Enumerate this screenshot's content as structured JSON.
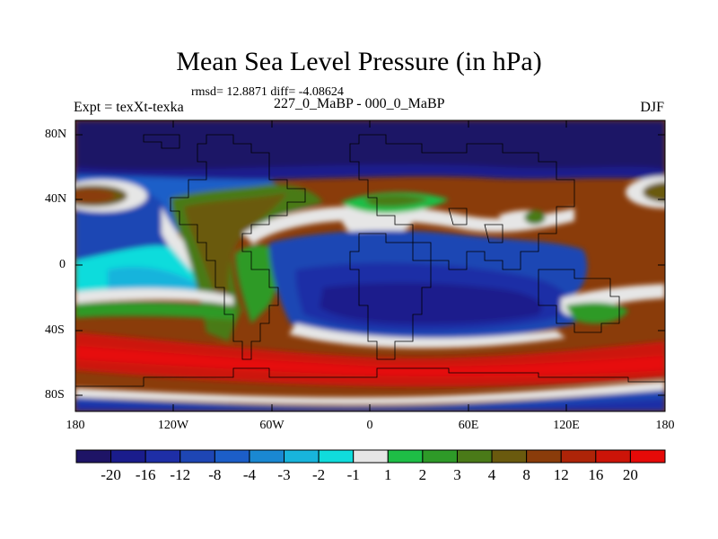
{
  "title": "Mean Sea Level Pressure (in hPa)",
  "stats": "rmsd= 12.8871 diff= -4.08624",
  "experiment": "Expt = texXt-texka",
  "period": "227_0_MaBP - 000_0_MaBP",
  "season": "DJF",
  "axes": {
    "y_ticks": [
      "80N",
      "40N",
      "0",
      "40S",
      "80S"
    ],
    "x_ticks": [
      "180",
      "120W",
      "60W",
      "0",
      "60E",
      "120E",
      "180"
    ]
  },
  "colorbar": {
    "labels": [
      "-20",
      "-16",
      "-12",
      "-8",
      "-4",
      "-3",
      "-2",
      "-1",
      "1",
      "2",
      "3",
      "4",
      "8",
      "12",
      "16",
      "20"
    ],
    "colors": [
      "#1e1466",
      "#1a1c8c",
      "#1e2ea6",
      "#1e46b4",
      "#1c5ec8",
      "#1a88d2",
      "#18b4dc",
      "#10dcdc",
      "#e6e6e6",
      "#1ebe46",
      "#2e9a28",
      "#4a7a18",
      "#6a5a0e",
      "#8a3c0a",
      "#ae2408",
      "#cc1408",
      "#e60a08"
    ]
  }
}
